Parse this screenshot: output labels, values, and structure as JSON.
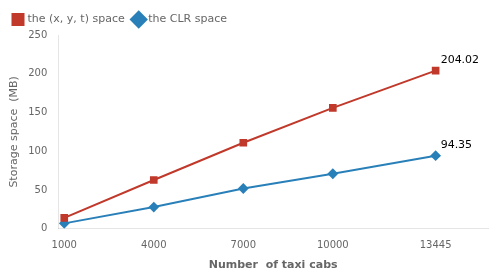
{
  "chart_data": {
    "type": "line",
    "x": [
      1000,
      4000,
      7000,
      10000,
      13445
    ],
    "series": [
      {
        "name": "the (x, y, t) space",
        "color": "#c0392b",
        "marker": "square",
        "values": [
          14,
          63,
          111,
          156,
          204.02
        ]
      },
      {
        "name": "the CLR space",
        "color": "#2980b9",
        "marker": "diamond",
        "values": [
          7,
          28,
          52,
          71,
          94.35
        ]
      }
    ],
    "xlabel": "Number  of taxi cabs",
    "ylabel": "Storage space  (MB)",
    "xlim": [
      800,
      15200
    ],
    "xticks": [
      1000,
      4000,
      7000,
      10000,
      13445
    ],
    "ylim": [
      0,
      250
    ],
    "yticks": [
      0,
      50,
      100,
      150,
      200,
      250
    ],
    "grid": false,
    "legend": "upper left",
    "annotations": [
      {
        "text": "204.02",
        "x": 13445,
        "y": 204.02
      },
      {
        "text": "94.35",
        "x": 13445,
        "y": 94.35
      }
    ]
  }
}
